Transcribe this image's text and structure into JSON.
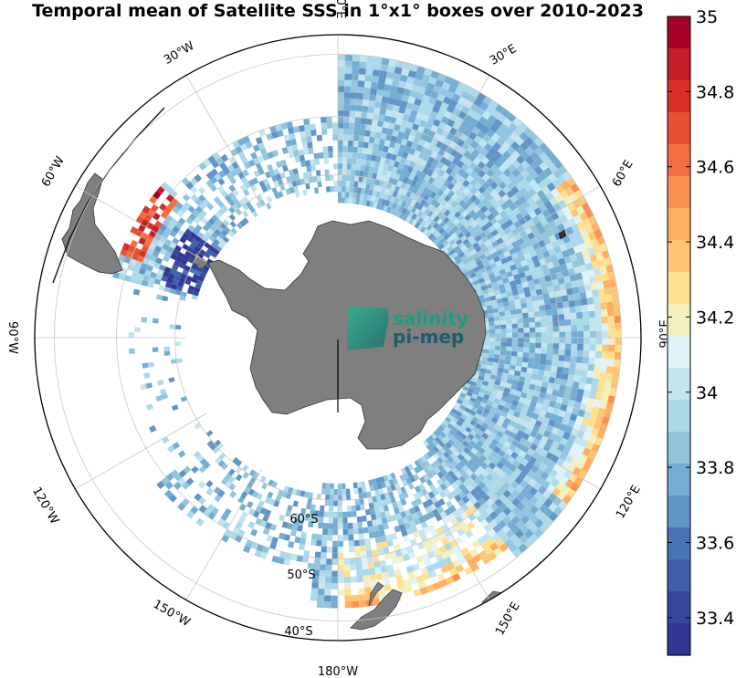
{
  "title": "Temporal mean of Satellite SSS in 1°x1° boxes over 2010-2023",
  "map": {
    "projection": "south polar stereographic",
    "longitude_labels": [
      "0°E",
      "30°E",
      "60°E",
      "90°E",
      "120°E",
      "150°E",
      "180°W",
      "150°W",
      "120°W",
      "90°W",
      "60°W",
      "30°W"
    ],
    "latitude_labels": [
      "60°S",
      "50°S",
      "40°S"
    ],
    "land_color": "#7f7f7f",
    "ocean_background": "#ffffff",
    "gridline_color": "#c8c8c8"
  },
  "logo": {
    "line1": "salinity",
    "line2": "pi-mep",
    "color": "#1a9e80",
    "dark_color": "#1b5e6b"
  },
  "colorbar": {
    "colormap": "RdYlBu reversed (red = high SSS, blue = low SSS)",
    "range": [
      33.3,
      35.0
    ],
    "tick_labels": [
      "35",
      "34.8",
      "34.6",
      "34.4",
      "34.2",
      "34",
      "33.8",
      "33.6",
      "33.4"
    ],
    "tick_values": [
      35.0,
      34.8,
      34.6,
      34.4,
      34.2,
      34.0,
      33.8,
      33.6,
      33.4
    ],
    "unit": "",
    "colors": [
      "#a50026",
      "#c41e27",
      "#d73027",
      "#e65035",
      "#f46d43",
      "#f8904f",
      "#fdae61",
      "#fdc574",
      "#fee090",
      "#f3f0c0",
      "#e0f3f8",
      "#c4e4ef",
      "#abd9e9",
      "#92c5de",
      "#74add1",
      "#6294c6",
      "#4575b4",
      "#3f5fa8",
      "#36479a",
      "#313695"
    ]
  },
  "chart_data": {
    "type": "heatmap",
    "title": "Temporal mean of Satellite SSS in 1°x1° boxes over 2010-2023",
    "value_range": [
      33.3,
      35.0
    ],
    "spatial_pattern": [
      {
        "sector": "Indian Ocean 60°E-110°E, north edge ~40°S",
        "sss_range": [
          34.4,
          35.0
        ]
      },
      {
        "sector": "Indian Ocean 20°E-110°E, south of 50°S",
        "sss_range": [
          33.7,
          34.0
        ]
      },
      {
        "sector": "Pacific 150°E-180°, near New Zealand",
        "sss_range": [
          34.2,
          34.8
        ]
      },
      {
        "sector": "Drake Passage / Antarctic Peninsula ~60°W",
        "sss_range": [
          33.3,
          33.8
        ]
      },
      {
        "sector": "SW Atlantic near Falklands ~60°W 50°S",
        "sss_range": [
          34.6,
          35.0
        ]
      },
      {
        "sector": "Atlantic 0°-30°W, south of 55°S",
        "sss_range": [
          33.7,
          34.0
        ]
      }
    ]
  }
}
